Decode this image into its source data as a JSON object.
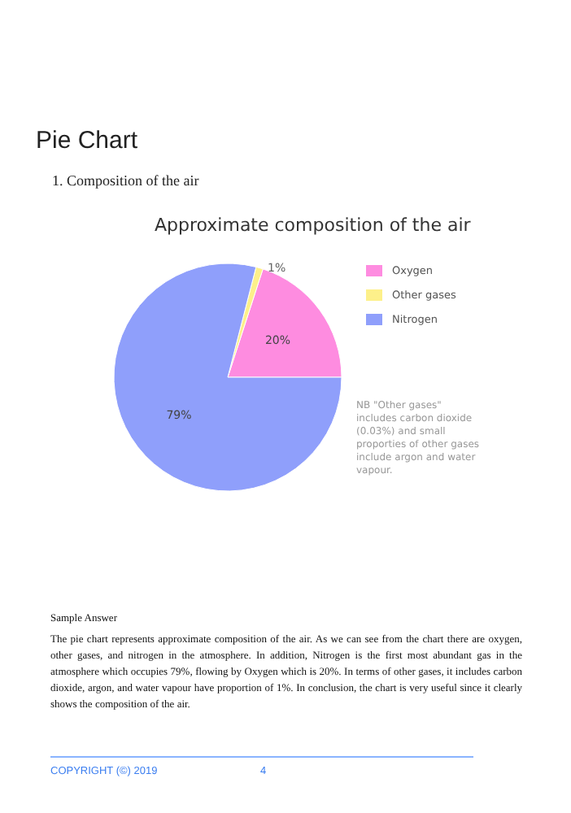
{
  "chart_data": {
    "type": "pie",
    "title": "Approximate composition of the air",
    "categories": [
      "Oxygen",
      "Other gases",
      "Nitrogen"
    ],
    "values": [
      20,
      1,
      79
    ],
    "colors": [
      "#fe8ce0",
      "#fdf08a",
      "#8f9ffb"
    ],
    "value_labels": [
      "20%",
      "1%",
      "79%"
    ],
    "legend": "right",
    "annotations": [
      "Pie Chart",
      "1.  Composition of the air",
      "NB \"Other gases\" includes carbon dioxide (0.03%) and small proporties of other gases include argon and water vapour.",
      "Sample Answer",
      "The pie chart represents approximate composition of the air. As we can see from the chart there are oxygen, other gases, and nitrogen in the atmosphere. In addition, Nitrogen is the first most abundant gas in the atmosphere which occupies 79%, flowing by Oxygen which is 20%. In terms of other gases, it includes carbon dioxide, argon, and water vapour have proportion of 1%. In conclusion, the chart is very useful since it clearly shows the composition of the air.",
      "COPYRIGHT (©) 2019",
      "4"
    ]
  }
}
